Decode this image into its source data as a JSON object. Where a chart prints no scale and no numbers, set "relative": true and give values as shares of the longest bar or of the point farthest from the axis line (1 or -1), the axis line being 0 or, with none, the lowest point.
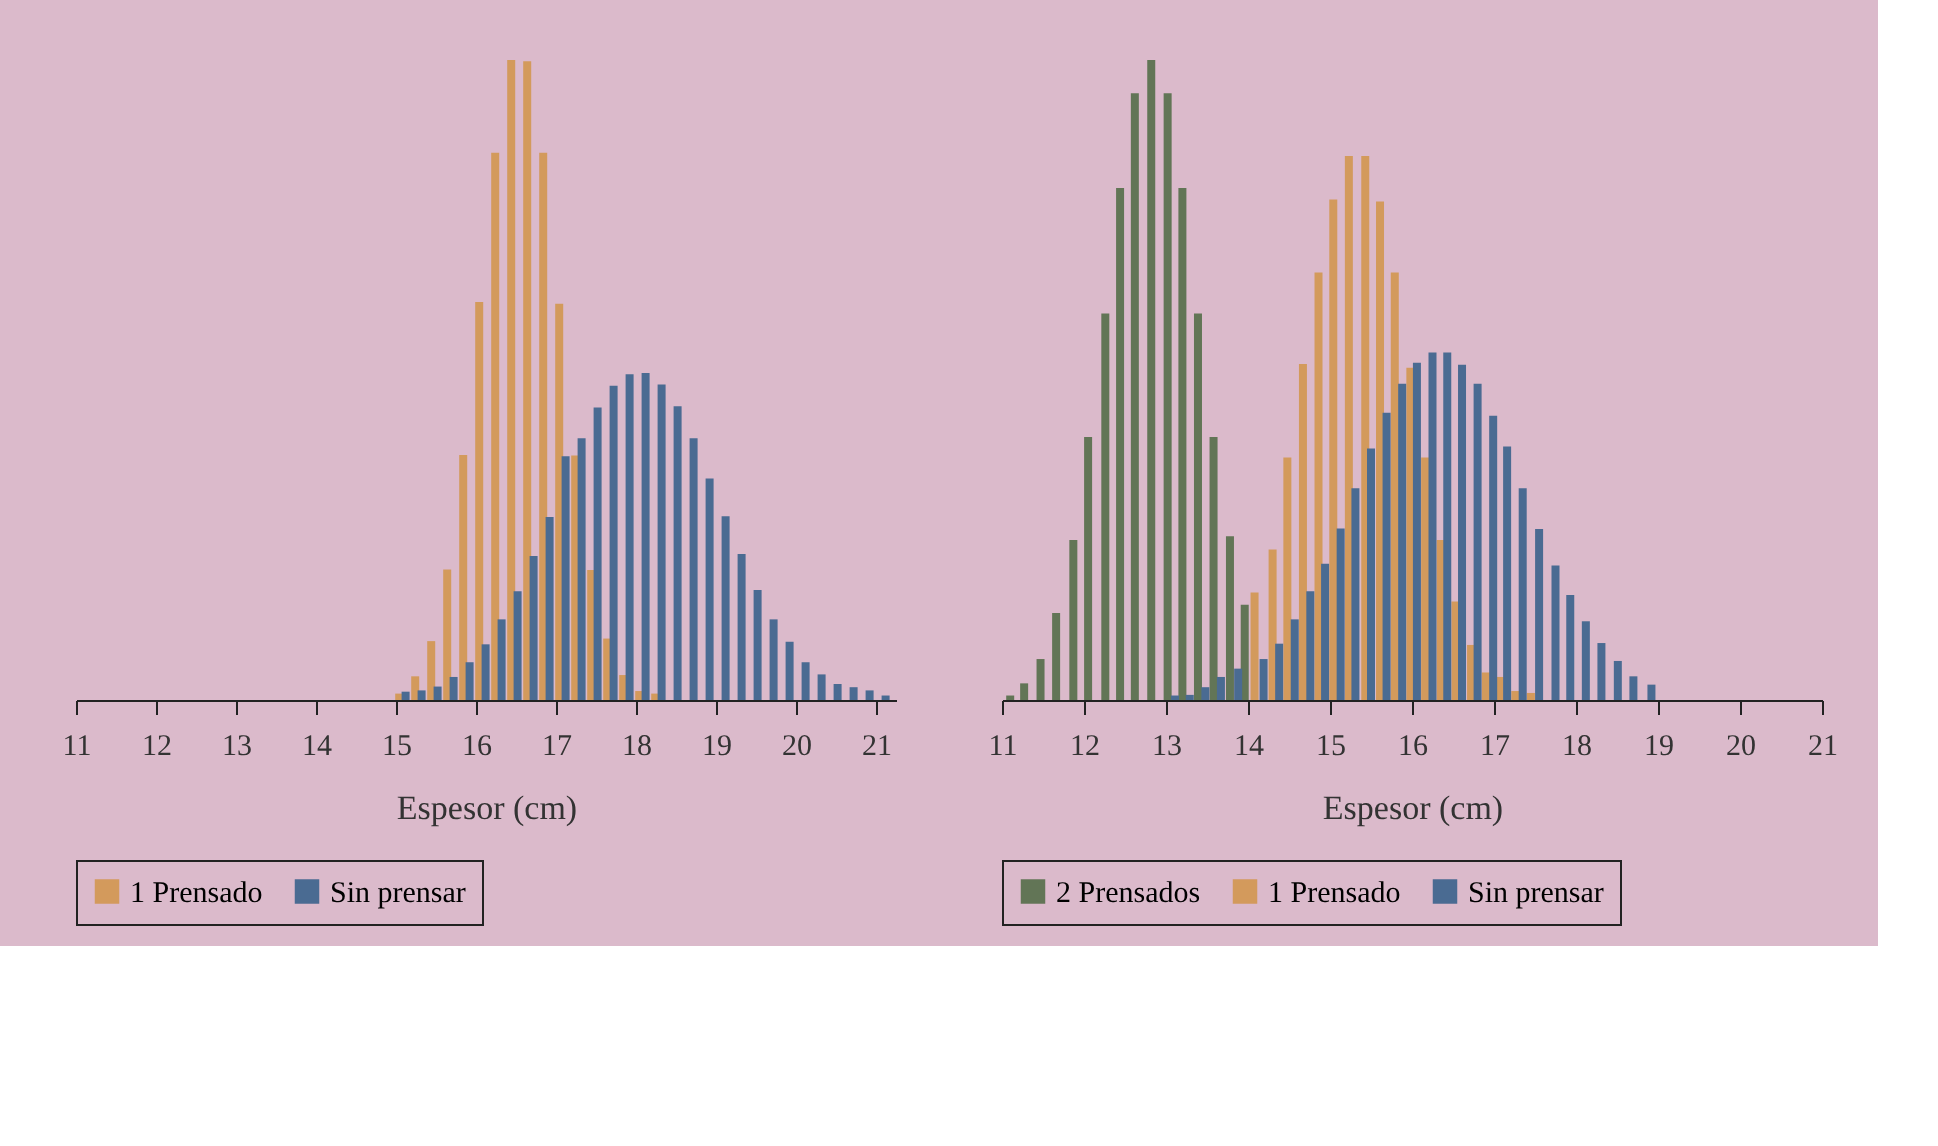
{
  "chart_data": [
    {
      "type": "bar",
      "relative": true,
      "xlabel": "Espesor (cm)",
      "xlim": [
        11,
        21.25
      ],
      "xticks": [
        11,
        12,
        13,
        14,
        15,
        16,
        17,
        18,
        19,
        20,
        21
      ],
      "legend": "bottom",
      "grid": false,
      "series": [
        {
          "name": "1 Prensado",
          "color": "#d39a5c",
          "x": [
            15.04,
            15.24,
            15.44,
            15.64,
            15.84,
            16.04,
            16.24,
            16.44,
            16.64,
            16.84,
            17.04,
            17.24,
            17.44,
            17.64,
            17.84,
            18.04,
            18.24
          ],
          "values": [
            0.01,
            0.037,
            0.092,
            0.204,
            0.383,
            0.622,
            0.855,
            1.0,
            0.998,
            0.855,
            0.619,
            0.382,
            0.203,
            0.096,
            0.039,
            0.014,
            0.01
          ]
        },
        {
          "name": "Sin prensar",
          "color": "#4a6b92",
          "x": [
            15.12,
            15.32,
            15.52,
            15.72,
            15.92,
            16.12,
            16.32,
            16.52,
            16.72,
            16.92,
            17.12,
            17.32,
            17.52,
            17.72,
            17.92,
            18.12,
            18.32,
            18.52,
            18.72,
            18.92,
            19.12,
            19.32,
            19.52,
            19.72,
            19.92,
            20.12,
            20.32,
            20.52,
            20.72,
            20.92,
            21.12
          ],
          "values": [
            0.013,
            0.015,
            0.021,
            0.036,
            0.059,
            0.087,
            0.126,
            0.17,
            0.225,
            0.286,
            0.381,
            0.409,
            0.457,
            0.491,
            0.509,
            0.511,
            0.493,
            0.459,
            0.409,
            0.346,
            0.287,
            0.228,
            0.172,
            0.126,
            0.091,
            0.059,
            0.04,
            0.025,
            0.02,
            0.015,
            0.007
          ]
        }
      ]
    },
    {
      "type": "bar",
      "relative": true,
      "xlabel": "Espesor (cm)",
      "xlim": [
        11,
        21
      ],
      "xticks": [
        11,
        12,
        13,
        14,
        15,
        16,
        17,
        18,
        19,
        20,
        21
      ],
      "legend": "bottom",
      "grid": false,
      "series": [
        {
          "name": "2 Prensados",
          "color": "#627556",
          "x": [
            11.1,
            11.27,
            11.47,
            11.66,
            11.87,
            12.05,
            12.26,
            12.44,
            12.62,
            12.82,
            13.02,
            13.2,
            13.39,
            13.58,
            13.78,
            13.96
          ],
          "values": [
            0.007,
            0.026,
            0.064,
            0.136,
            0.25,
            0.411,
            0.604,
            0.8,
            0.948,
            1.0,
            0.948,
            0.8,
            0.604,
            0.411,
            0.256,
            0.149
          ]
        },
        {
          "name": "1 Prensado",
          "color": "#d39a5c",
          "x": [
            14.08,
            14.3,
            14.48,
            14.67,
            14.86,
            15.04,
            15.23,
            15.43,
            15.61,
            15.79,
            15.98,
            16.16,
            16.35,
            16.53,
            16.72,
            16.9,
            17.07,
            17.26,
            17.45
          ],
          "values": [
            0.168,
            0.235,
            0.379,
            0.525,
            0.668,
            0.782,
            0.85,
            0.85,
            0.779,
            0.668,
            0.519,
            0.379,
            0.25,
            0.154,
            0.086,
            0.043,
            0.036,
            0.014,
            0.011
          ]
        },
        {
          "name": "Sin prensar",
          "color": "#4a6b92",
          "x": [
            13.11,
            13.29,
            13.48,
            13.67,
            13.88,
            14.19,
            14.38,
            14.57,
            14.76,
            14.94,
            15.13,
            15.31,
            15.5,
            15.69,
            15.88,
            16.06,
            16.25,
            16.43,
            16.61,
            16.8,
            16.99,
            17.16,
            17.35,
            17.55,
            17.75,
            17.93,
            18.12,
            18.31,
            18.51,
            18.7,
            18.92
          ],
          "values": [
            0.007,
            0.008,
            0.02,
            0.036,
            0.049,
            0.064,
            0.088,
            0.126,
            0.17,
            0.213,
            0.268,
            0.331,
            0.393,
            0.449,
            0.494,
            0.527,
            0.543,
            0.543,
            0.524,
            0.494,
            0.444,
            0.396,
            0.331,
            0.267,
            0.21,
            0.164,
            0.123,
            0.089,
            0.061,
            0.037,
            0.024
          ]
        }
      ]
    }
  ]
}
